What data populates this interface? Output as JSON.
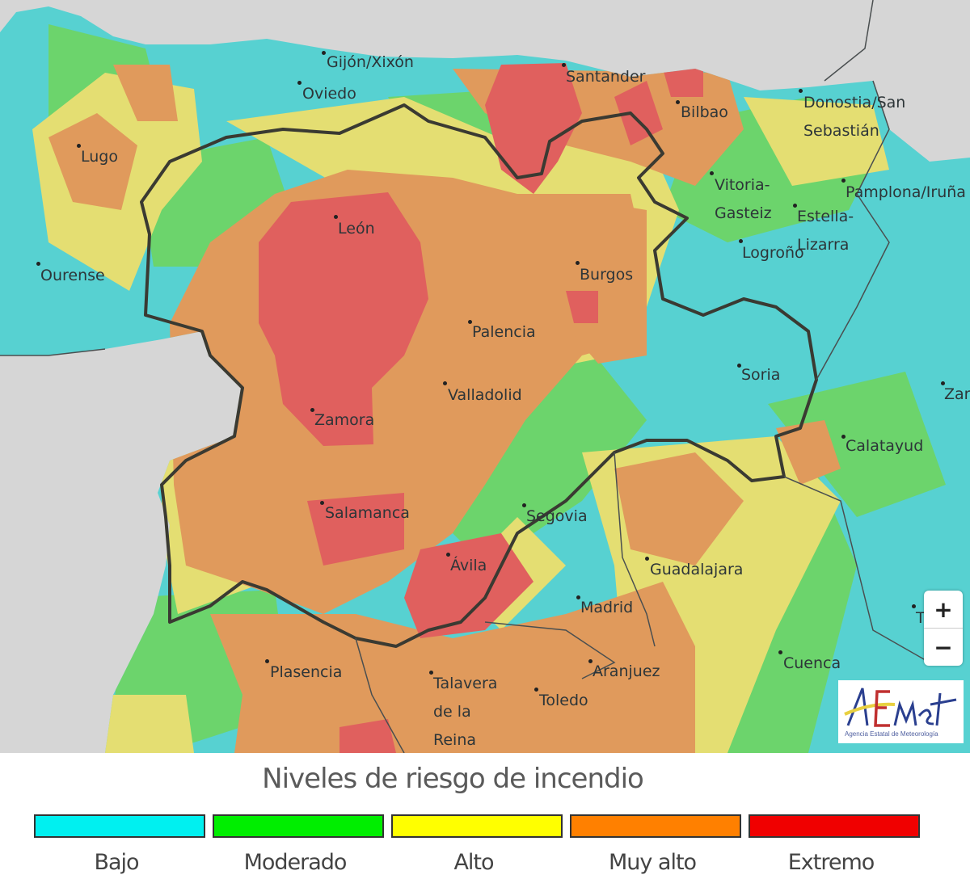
{
  "map": {
    "colors": {
      "sea": "#d6d6d6",
      "bajo": "#57d1d1",
      "moderado": "#6cd46c",
      "alto": "#e4de72",
      "muy_alto": "#e09a5c",
      "extremo": "#e0605e",
      "border": "#3a3a32"
    },
    "cities": {
      "gijon": "Gijón/Xixón",
      "oviedo": "Oviedo",
      "santander": "Santander",
      "bilbao": "Bilbao",
      "donostia": [
        "Donostia/San",
        "Sebastián"
      ],
      "lugo": "Lugo",
      "vitoria": [
        "Vitoria-",
        "Gasteiz"
      ],
      "pamplona": "Pamplona/Iruña",
      "estella": [
        "Estella-",
        "Lizarra"
      ],
      "logrono": "Logroño",
      "leon": "León",
      "ourense": "Ourense",
      "burgos": "Burgos",
      "palencia": "Palencia",
      "soria": "Soria",
      "valladolid": "Valladolid",
      "zamora": "Zamora",
      "zaragoza": "Zar",
      "calatayud": "Calatayud",
      "salamanca": "Salamanca",
      "segovia": "Segovia",
      "avila": "Ávila",
      "guadalajara": "Guadalajara",
      "madrid": "Madrid",
      "teruel": "T",
      "plasencia": "Plasencia",
      "talavera": [
        "Talavera",
        "de la",
        "Reina"
      ],
      "aranjuez": "Aranjuez",
      "toledo": "Toledo",
      "cuenca": "Cuenca"
    },
    "zoom_in": "+",
    "zoom_out": "−",
    "logo": {
      "name": "AEMet",
      "subtitle": "Agencia Estatal de Meteorología"
    }
  },
  "legend": {
    "title": "Niveles de riesgo de incendio",
    "items": [
      {
        "label": "Bajo",
        "color": "#00f0f0"
      },
      {
        "label": "Moderado",
        "color": "#00ee00"
      },
      {
        "label": "Alto",
        "color": "#ffff00"
      },
      {
        "label": "Muy alto",
        "color": "#ff8000"
      },
      {
        "label": "Extremo",
        "color": "#f00000"
      }
    ]
  }
}
